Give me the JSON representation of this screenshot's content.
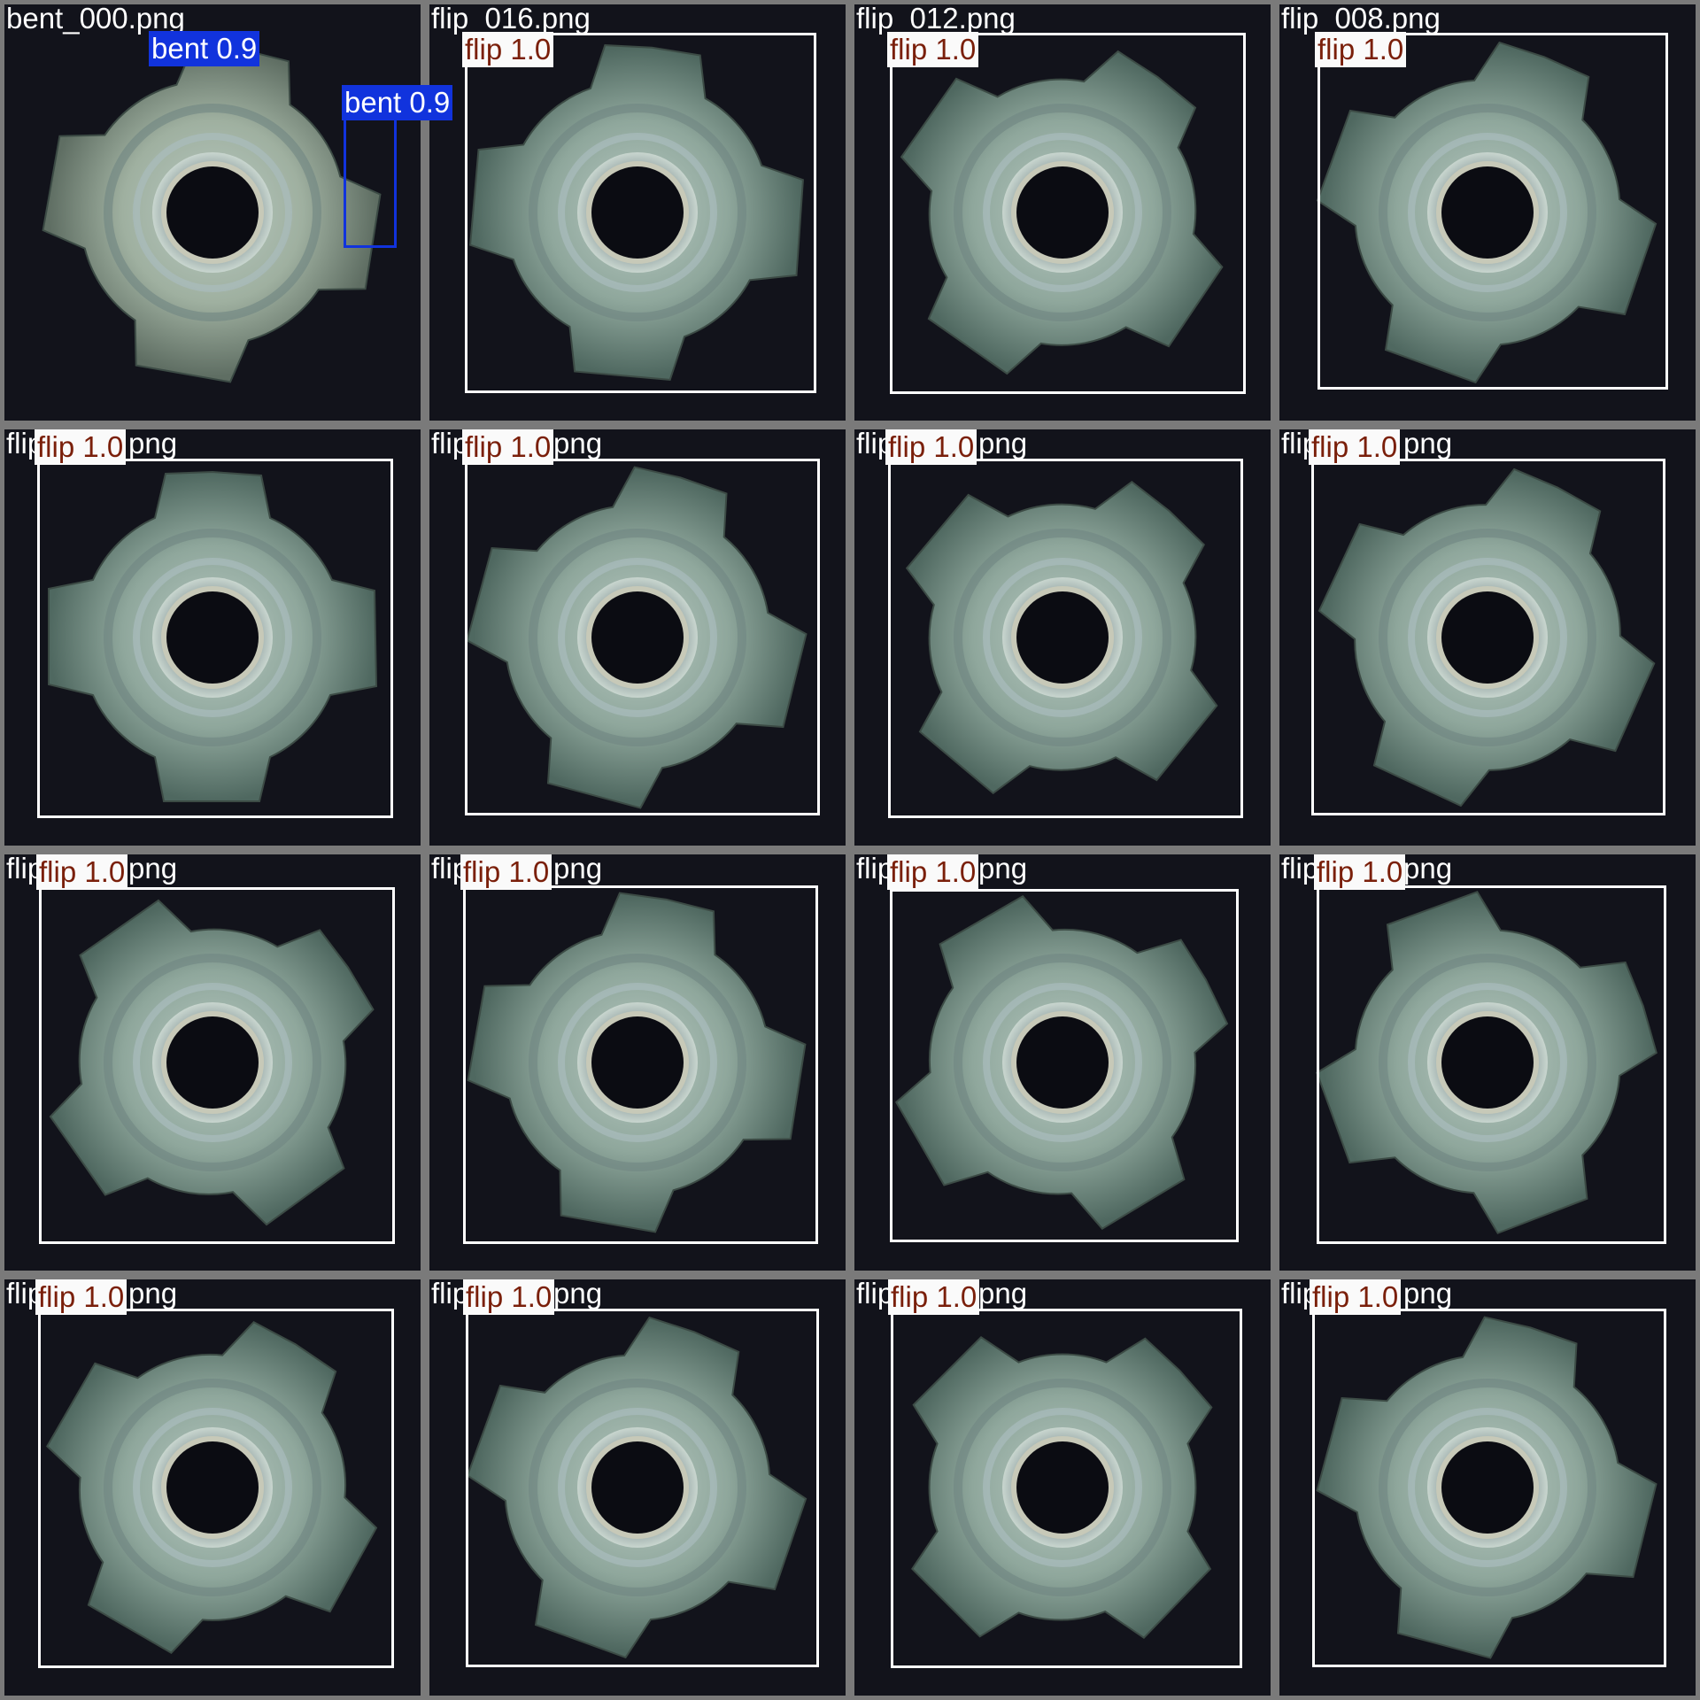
{
  "tiles": [
    {
      "file": "bent_000.png",
      "rotation": 10,
      "bright": true,
      "detections": [
        {
          "label": "bent 0.9",
          "cls": "bent"
        },
        {
          "label": "bent 0.9",
          "cls": "bent"
        }
      ]
    },
    {
      "file": "flip_016.png",
      "rotation": 5,
      "detections": [
        {
          "label": "flip 1.0",
          "cls": "flip"
        }
      ]
    },
    {
      "file": "flip_012.png",
      "rotation": 35,
      "detections": [
        {
          "label": "flip 1.0",
          "cls": "flip"
        }
      ]
    },
    {
      "file": "flip_008.png",
      "rotation": 20,
      "detections": [
        {
          "label": "flip 1.0",
          "cls": "flip"
        }
      ]
    },
    {
      "file": "flip_",
      "file_tail": "png",
      "rotation": 0,
      "detections": [
        {
          "label": "flip 1.0",
          "cls": "flip"
        }
      ]
    },
    {
      "file": "flip_",
      "file_tail": "png",
      "rotation": 15,
      "detections": [
        {
          "label": "flip 1.0",
          "cls": "flip"
        }
      ]
    },
    {
      "file": "flip_",
      "file_tail": "png",
      "rotation": 40,
      "detections": [
        {
          "label": "flip 1.0",
          "cls": "flip"
        }
      ]
    },
    {
      "file": "flip_",
      "file_tail": "png",
      "rotation": 25,
      "detections": [
        {
          "label": "flip 1.0",
          "cls": "flip"
        }
      ]
    },
    {
      "file": "flip_",
      "file_tail": "png",
      "rotation": 55,
      "detections": [
        {
          "label": "flip 1.0",
          "cls": "flip"
        }
      ]
    },
    {
      "file": "flip_",
      "file_tail": "png",
      "rotation": 10,
      "detections": [
        {
          "label": "flip 1.0",
          "cls": "flip"
        }
      ]
    },
    {
      "file": "flip_",
      "file_tail": "png",
      "rotation": 60,
      "detections": [
        {
          "label": "flip 1.0",
          "cls": "flip"
        }
      ]
    },
    {
      "file": "flip_",
      "file_tail": "png",
      "rotation": 70,
      "detections": [
        {
          "label": "flip 1.0",
          "cls": "flip"
        }
      ]
    },
    {
      "file": "flip_",
      "file_tail": "png",
      "rotation": 30,
      "detections": [
        {
          "label": "flip 1.0",
          "cls": "flip"
        }
      ]
    },
    {
      "file": "flip_",
      "file_tail": "png",
      "rotation": 20,
      "detections": [
        {
          "label": "flip 1.0",
          "cls": "flip"
        }
      ]
    },
    {
      "file": "flip_",
      "file_tail": "png",
      "rotation": 45,
      "detections": [
        {
          "label": "flip 1.0",
          "cls": "flip"
        }
      ]
    },
    {
      "file": "flip_",
      "file_tail": "png",
      "rotation": 15,
      "detections": [
        {
          "label": "flip 1.0",
          "cls": "flip"
        }
      ]
    }
  ],
  "colors": {
    "background": "#12131b",
    "separator": "#7a7a7a",
    "flip_box": "#ffffff",
    "flip_label_bg": "#fafafa",
    "flip_label_text": "#7a1f0a",
    "bent_box": "#1133dd",
    "bent_label_text": "#ffffff"
  }
}
